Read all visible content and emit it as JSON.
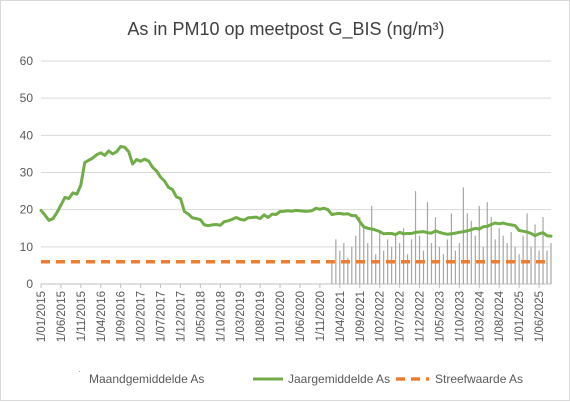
{
  "chart_data": {
    "type": "line",
    "title": "As in PM10 op meetpost G_BIS (ng/m³)",
    "xlabel": "",
    "ylabel": "",
    "ylim": [
      0,
      60
    ],
    "yticks": [
      0,
      10,
      20,
      30,
      40,
      50,
      60
    ],
    "grid": true,
    "legend_position": "bottom",
    "x_range": [
      "2015-01",
      "2025-09"
    ],
    "x_ticks": [
      "1/01/2015",
      "1/06/2015",
      "1/11/2015",
      "1/04/2016",
      "1/09/2016",
      "1/02/2017",
      "1/07/2017",
      "1/12/2017",
      "1/05/2018",
      "1/10/2018",
      "1/03/2019",
      "1/08/2019",
      "1/01/2020",
      "1/06/2020",
      "1/11/2020",
      "1/04/2021",
      "1/09/2021",
      "1/02/2022",
      "1/07/2022",
      "1/12/2022",
      "1/05/2023",
      "1/10/2023",
      "1/03/2024",
      "1/08/2024",
      "1/01/2025",
      "1/06/2025"
    ],
    "series": [
      {
        "name": "Maandgemiddelde As",
        "kind": "bar",
        "color": "#a6a6a6",
        "x": [
          "2021-02",
          "2021-03",
          "2021-04",
          "2021-05",
          "2021-06",
          "2021-07",
          "2021-08",
          "2021-09",
          "2021-10",
          "2021-11",
          "2021-12",
          "2022-01",
          "2022-02",
          "2022-03",
          "2022-04",
          "2022-05",
          "2022-06",
          "2022-07",
          "2022-08",
          "2022-09",
          "2022-10",
          "2022-11",
          "2022-12",
          "2023-01",
          "2023-02",
          "2023-03",
          "2023-04",
          "2023-05",
          "2023-06",
          "2023-07",
          "2023-08",
          "2023-09",
          "2023-10",
          "2023-11",
          "2023-12",
          "2024-01",
          "2024-02",
          "2024-03",
          "2024-04",
          "2024-05",
          "2024-06",
          "2024-07",
          "2024-08",
          "2024-09",
          "2024-10",
          "2024-11",
          "2024-12",
          "2025-01",
          "2025-02",
          "2025-03",
          "2025-04",
          "2025-05",
          "2025-06",
          "2025-07",
          "2025-08",
          "2025-09"
        ],
        "values": [
          6,
          12,
          9,
          11,
          7,
          10,
          13,
          18,
          16,
          11,
          21,
          8,
          14,
          9,
          12,
          10,
          13,
          11,
          15,
          8,
          12,
          25,
          13,
          9,
          22,
          11,
          18,
          10,
          8,
          12,
          19,
          9,
          11,
          26,
          19,
          17,
          13,
          21,
          10,
          22,
          18,
          12,
          15,
          13,
          11,
          14,
          10,
          8,
          13,
          19,
          10,
          16,
          9,
          18,
          9,
          11
        ]
      },
      {
        "name": "Jaargemiddelde As",
        "kind": "line",
        "color": "#70ad47",
        "x": [
          "2015-01",
          "2015-02",
          "2015-03",
          "2015-04",
          "2015-05",
          "2015-06",
          "2015-07",
          "2015-08",
          "2015-09",
          "2015-10",
          "2015-11",
          "2015-12",
          "2016-01",
          "2016-02",
          "2016-03",
          "2016-04",
          "2016-05",
          "2016-06",
          "2016-07",
          "2016-08",
          "2016-09",
          "2016-10",
          "2016-11",
          "2016-12",
          "2017-01",
          "2017-02",
          "2017-03",
          "2017-04",
          "2017-05",
          "2017-06",
          "2017-07",
          "2017-08",
          "2017-09",
          "2017-10",
          "2017-11",
          "2017-12",
          "2018-01",
          "2018-02",
          "2018-03",
          "2018-04",
          "2018-05",
          "2018-06",
          "2018-07",
          "2018-08",
          "2018-09",
          "2018-10",
          "2018-11",
          "2018-12",
          "2019-01",
          "2019-02",
          "2019-03",
          "2019-04",
          "2019-05",
          "2019-06",
          "2019-07",
          "2019-08",
          "2019-09",
          "2019-10",
          "2019-11",
          "2019-12",
          "2020-01",
          "2020-02",
          "2020-03",
          "2020-04",
          "2020-05",
          "2020-06",
          "2020-07",
          "2020-08",
          "2020-09",
          "2020-10",
          "2020-11",
          "2020-12",
          "2021-01",
          "2021-02",
          "2021-03",
          "2021-04",
          "2021-05",
          "2021-06",
          "2021-07",
          "2021-08",
          "2021-09",
          "2021-10",
          "2021-11",
          "2021-12",
          "2022-01",
          "2022-02",
          "2022-03",
          "2022-04",
          "2022-05",
          "2022-06",
          "2022-07",
          "2022-08",
          "2022-09",
          "2022-10",
          "2022-11",
          "2022-12",
          "2023-01",
          "2023-02",
          "2023-03",
          "2023-04",
          "2023-05",
          "2023-06",
          "2023-07",
          "2023-08",
          "2023-09",
          "2023-10",
          "2023-11",
          "2023-12",
          "2024-01",
          "2024-02",
          "2024-03",
          "2024-04",
          "2024-05",
          "2024-06",
          "2024-07",
          "2024-08",
          "2024-09",
          "2024-10",
          "2024-11",
          "2024-12",
          "2025-01",
          "2025-02",
          "2025-03",
          "2025-04",
          "2025-05",
          "2025-06",
          "2025-07",
          "2025-08",
          "2025-09"
        ],
        "values": [
          19.8,
          18.5,
          17.1,
          17.6,
          19.2,
          21.2,
          23.3,
          23.0,
          24.5,
          24.2,
          26.6,
          32.7,
          33.3,
          33.9,
          34.8,
          35.3,
          34.6,
          35.8,
          35.0,
          35.6,
          37.0,
          36.8,
          35.6,
          32.3,
          33.5,
          33.0,
          33.6,
          33.1,
          31.4,
          30.4,
          28.8,
          27.7,
          26.0,
          25.4,
          23.4,
          23.0,
          19.5,
          18.8,
          17.8,
          17.6,
          17.3,
          15.9,
          15.7,
          15.9,
          16.0,
          15.8,
          16.8,
          17.0,
          17.4,
          17.9,
          17.4,
          17.2,
          17.8,
          17.9,
          18.0,
          17.6,
          18.6,
          17.9,
          18.8,
          18.7,
          19.5,
          19.6,
          19.7,
          19.6,
          19.8,
          19.7,
          19.6,
          19.6,
          19.7,
          20.4,
          20.1,
          20.4,
          20.0,
          18.7,
          18.9,
          19.0,
          18.8,
          18.9,
          18.4,
          18.4,
          16.8,
          15.4,
          15.0,
          14.8,
          14.5,
          14.1,
          13.5,
          13.6,
          13.6,
          13.3,
          13.9,
          13.5,
          13.6,
          13.6,
          13.9,
          14.0,
          14.1,
          13.8,
          13.7,
          14.3,
          13.9,
          13.6,
          13.4,
          13.5,
          13.7,
          13.9,
          14.1,
          14.3,
          14.6,
          15.0,
          14.8,
          15.4,
          15.5,
          16.0,
          16.4,
          16.2,
          16.4,
          16.1,
          15.9,
          15.7,
          14.4,
          14.2,
          14.0,
          13.6,
          13.0,
          13.5,
          13.8,
          13.0,
          12.9
        ]
      },
      {
        "name": "Streefwaarde As",
        "kind": "line",
        "style": "dashed",
        "color": "#ed7d31",
        "x": [
          "2015-01",
          "2025-09"
        ],
        "values": [
          6,
          6
        ]
      }
    ]
  }
}
